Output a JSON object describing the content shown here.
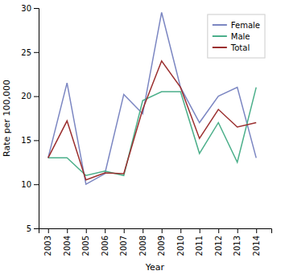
{
  "chart_data": {
    "type": "line",
    "xlabel": "Year",
    "ylabel": "Rate per 100,000",
    "x": [
      2003,
      2004,
      2005,
      2006,
      2007,
      2008,
      2009,
      2010,
      2011,
      2012,
      2013,
      2014
    ],
    "series": [
      {
        "name": "Female",
        "color": "#7B86C2",
        "values": [
          13.0,
          21.5,
          10.0,
          11.2,
          20.2,
          18.0,
          29.5,
          21.0,
          17.0,
          20.0,
          21.0,
          13.0
        ]
      },
      {
        "name": "Male",
        "color": "#4BAF8A",
        "values": [
          13.0,
          13.0,
          11.0,
          11.5,
          11.0,
          19.5,
          20.5,
          20.5,
          13.5,
          17.0,
          12.5,
          21.0
        ]
      },
      {
        "name": "Total",
        "color": "#9B2F2F",
        "values": [
          13.0,
          17.2,
          10.5,
          11.3,
          11.2,
          18.5,
          24.0,
          21.0,
          15.2,
          18.5,
          16.5,
          17.0
        ]
      }
    ],
    "xlim": [
      2002.5,
      2014.8
    ],
    "xticks": [
      2003,
      2004,
      2005,
      2006,
      2007,
      2008,
      2009,
      2010,
      2011,
      2012,
      2013,
      2014
    ],
    "ylim": [
      5,
      30
    ],
    "yticks": [
      5,
      10,
      15,
      20,
      25,
      30
    ],
    "grid": false,
    "legend": "upper right"
  }
}
